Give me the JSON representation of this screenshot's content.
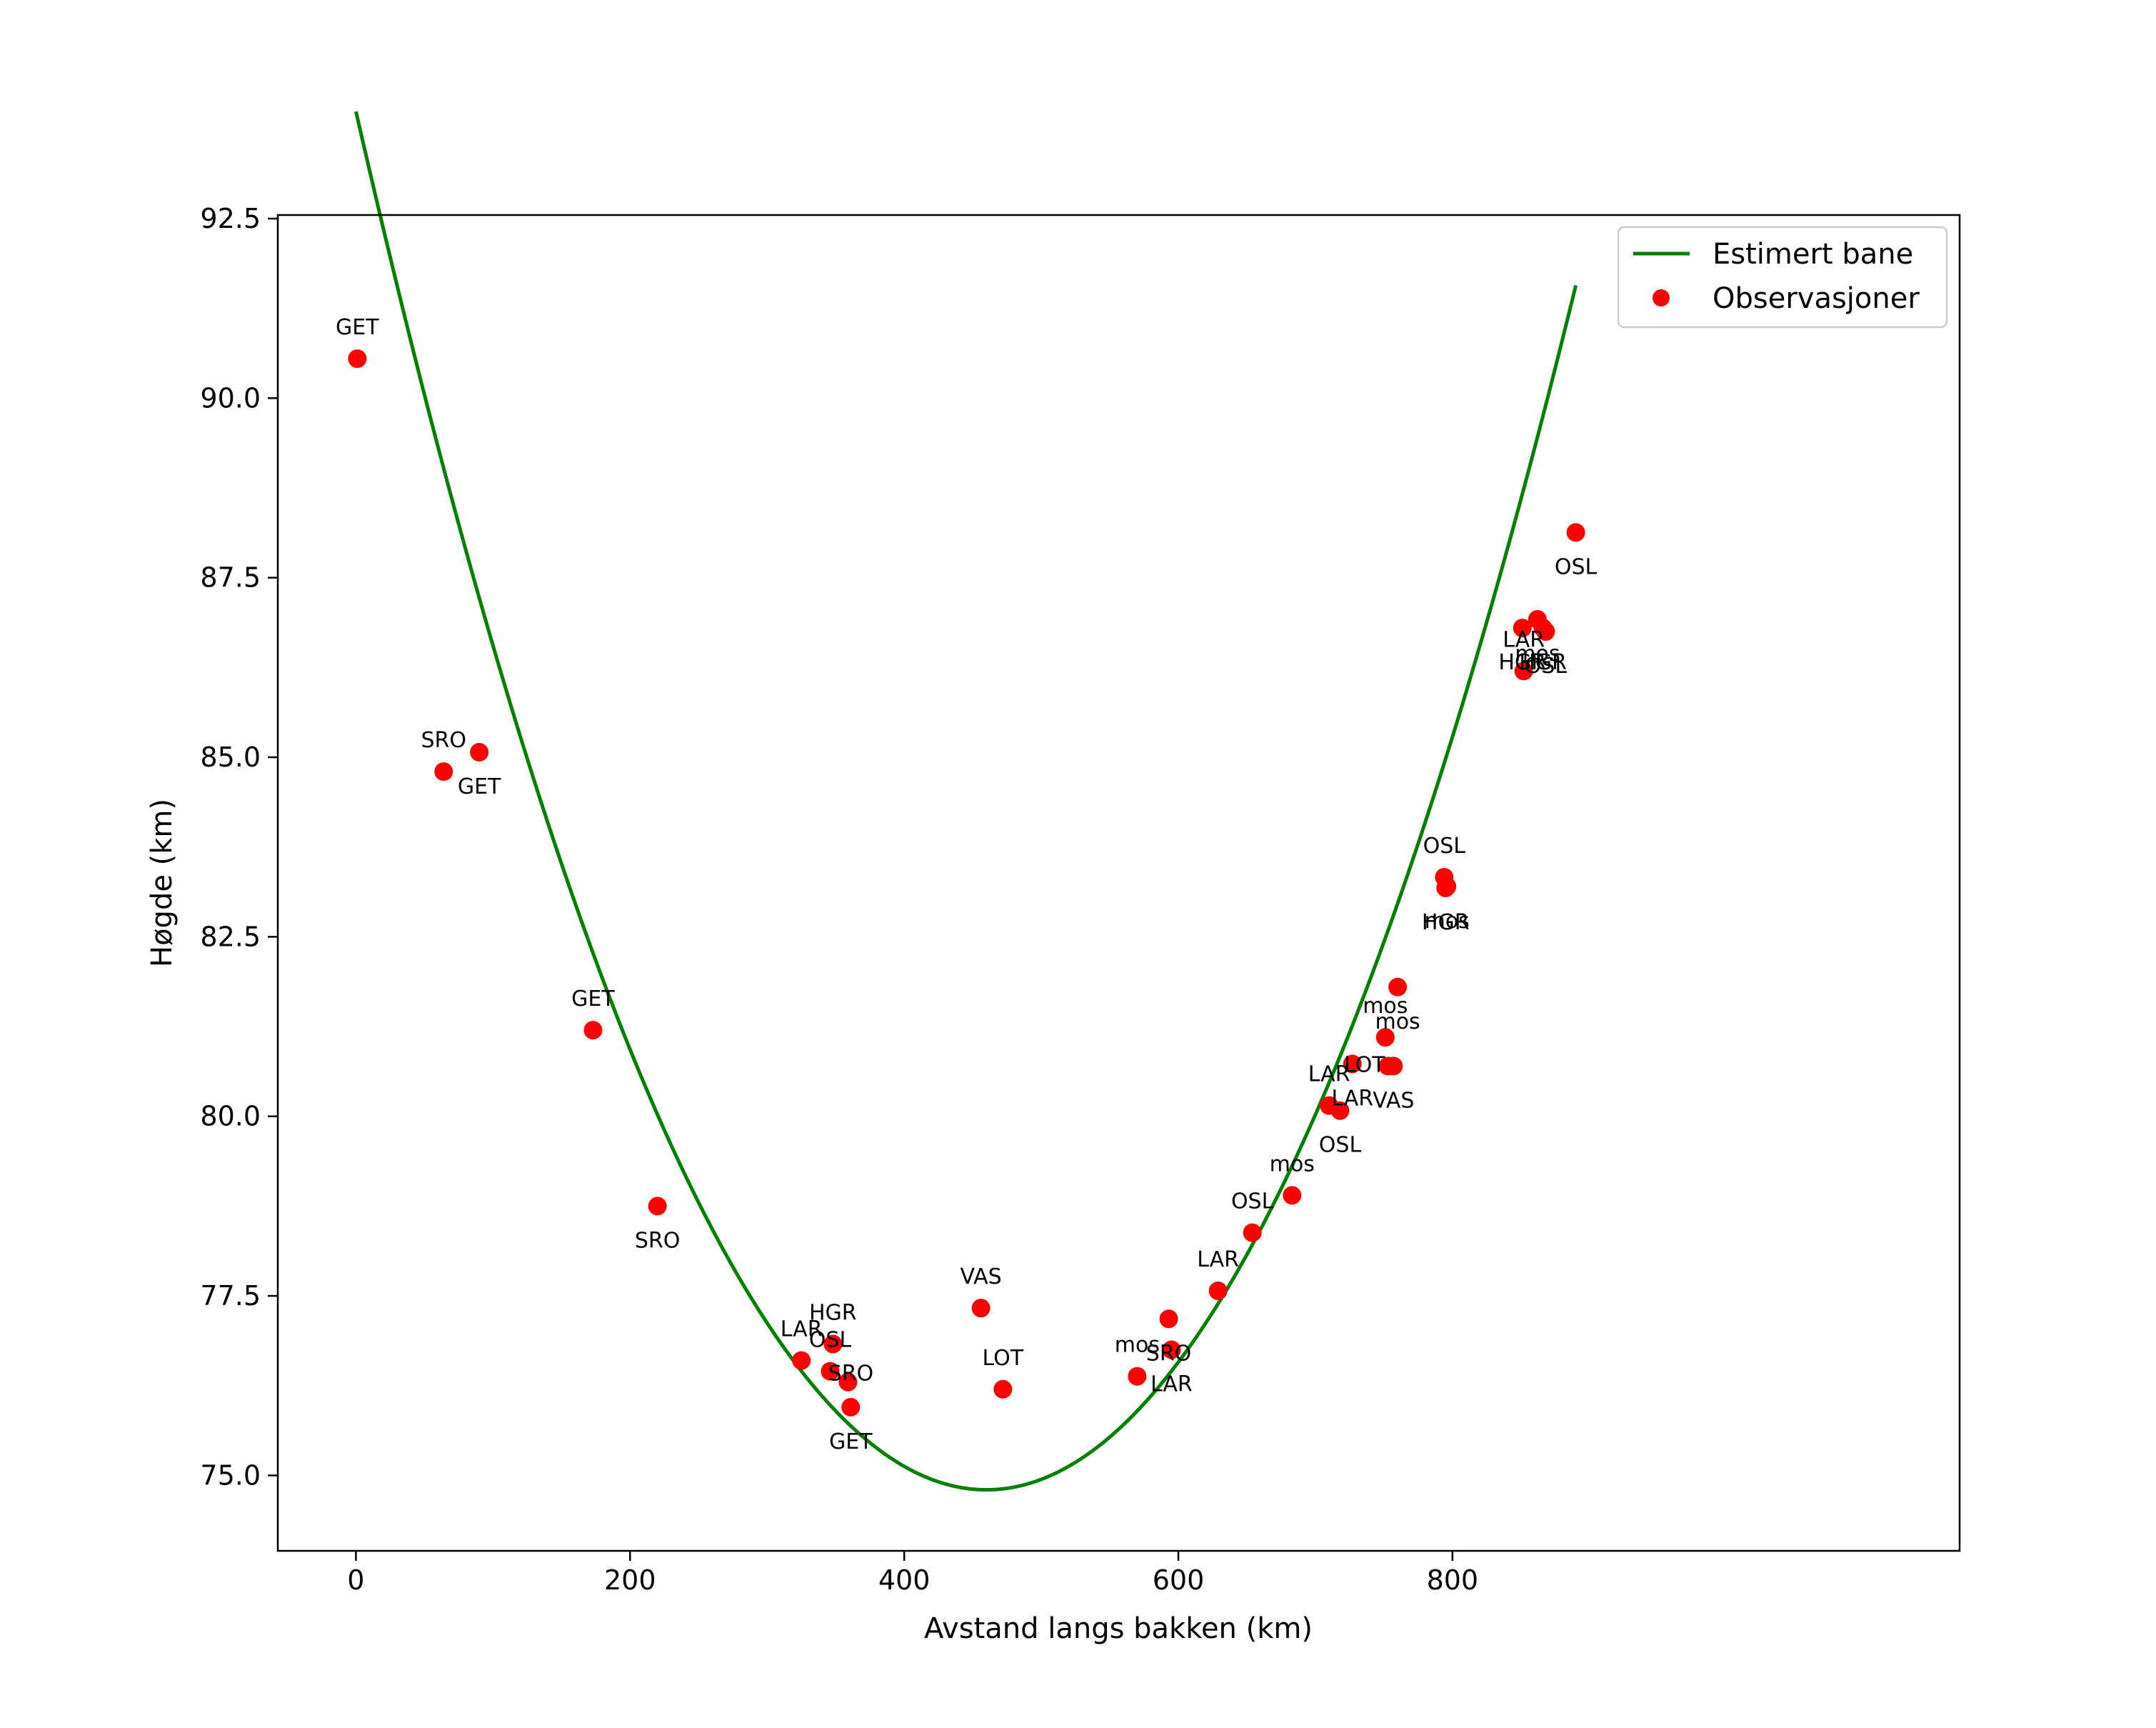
{
  "chart_data": {
    "type": "scatter",
    "title": "",
    "xlabel": "Avstand langs bakken (km)",
    "ylabel": "Høgde (km)",
    "xlim": [
      -57,
      1170
    ],
    "ylim": [
      73.95,
      92.55
    ],
    "xticks": [
      0,
      200,
      400,
      600,
      800
    ],
    "xtick_labels": [
      "0",
      "200",
      "400",
      "600",
      "800"
    ],
    "yticks": [
      75.0,
      77.5,
      80.0,
      82.5,
      85.0,
      87.5,
      90.0,
      92.5
    ],
    "ytick_labels": [
      "75.0",
      "77.5",
      "80.0",
      "82.5",
      "85.0",
      "87.5",
      "90.0",
      "92.5"
    ],
    "grid": false,
    "legend_position": "top-right",
    "legend": [
      "Estimert bane",
      "Observasjoner"
    ],
    "colors": {
      "line": "#008000",
      "points": "#ff0000",
      "axes": "#000000"
    },
    "series": [
      {
        "name": "Estimert bane",
        "kind": "line",
        "quadratic_fit": {
          "vertex_x": 460,
          "vertex_y": 74.8,
          "a": 9.07e-05
        },
        "x_range": [
          0,
          890
        ]
      },
      {
        "name": "Observasjoner",
        "kind": "scatter",
        "points": [
          {
            "x": 1,
            "y": 90.55,
            "label": "GET",
            "pos": "above"
          },
          {
            "x": 64,
            "y": 84.8,
            "label": "SRO",
            "pos": "above"
          },
          {
            "x": 90,
            "y": 85.07,
            "label": "GET",
            "pos": "below"
          },
          {
            "x": 173,
            "y": 81.2,
            "label": "GET",
            "pos": "above"
          },
          {
            "x": 220,
            "y": 78.75,
            "label": "SRO",
            "pos": "below"
          },
          {
            "x": 325,
            "y": 76.6,
            "label": "LAR",
            "pos": "above"
          },
          {
            "x": 346,
            "y": 76.45,
            "label": "OSL",
            "pos": "above"
          },
          {
            "x": 348,
            "y": 76.83,
            "label": "HGR",
            "pos": "above"
          },
          {
            "x": 359,
            "y": 76.3,
            "label": "SRO",
            "pos": "right-above"
          },
          {
            "x": 361,
            "y": 75.95,
            "label": "GET",
            "pos": "below"
          },
          {
            "x": 456,
            "y": 77.33,
            "label": "VAS",
            "pos": "above"
          },
          {
            "x": 472,
            "y": 76.2,
            "label": "LOT",
            "pos": "above"
          },
          {
            "x": 570,
            "y": 76.38,
            "label": "mos",
            "pos": "above"
          },
          {
            "x": 593,
            "y": 77.18,
            "label": "SRO",
            "pos": "below"
          },
          {
            "x": 595,
            "y": 76.75,
            "label": "LAR",
            "pos": "below"
          },
          {
            "x": 629,
            "y": 77.57,
            "label": "LAR",
            "pos": "above"
          },
          {
            "x": 654,
            "y": 78.38,
            "label": "OSL",
            "pos": "above"
          },
          {
            "x": 683,
            "y": 78.9,
            "label": "mos",
            "pos": "above"
          },
          {
            "x": 710,
            "y": 80.15,
            "label": "LAR",
            "pos": "above"
          },
          {
            "x": 718,
            "y": 80.08,
            "label": "OSL",
            "pos": "below"
          },
          {
            "x": 727,
            "y": 80.73,
            "label": "LAR",
            "pos": "below"
          },
          {
            "x": 751,
            "y": 81.1,
            "label": "mos",
            "pos": "above"
          },
          {
            "x": 753,
            "y": 80.7,
            "label": "LOT",
            "pos": "left"
          },
          {
            "x": 757,
            "y": 80.7,
            "label": "VAS",
            "pos": "below"
          },
          {
            "x": 760,
            "y": 81.8,
            "label": "mos",
            "pos": "below"
          },
          {
            "x": 794,
            "y": 83.33,
            "label": "OSL",
            "pos": "above"
          },
          {
            "x": 795,
            "y": 83.18,
            "label": "HGR",
            "pos": "below"
          },
          {
            "x": 796,
            "y": 83.2,
            "label": "mos",
            "pos": "below"
          },
          {
            "x": 851,
            "y": 86.8,
            "label": "HGR",
            "pos": "below"
          },
          {
            "x": 852,
            "y": 86.2,
            "label": "LAR",
            "pos": "above"
          },
          {
            "x": 862,
            "y": 86.92,
            "label": "mos",
            "pos": "below"
          },
          {
            "x": 866,
            "y": 86.8,
            "label": "HGR",
            "pos": "below"
          },
          {
            "x": 868,
            "y": 86.75,
            "label": "OSL",
            "pos": "below"
          },
          {
            "x": 890,
            "y": 88.13,
            "label": "OSL",
            "pos": "below"
          }
        ]
      }
    ]
  }
}
